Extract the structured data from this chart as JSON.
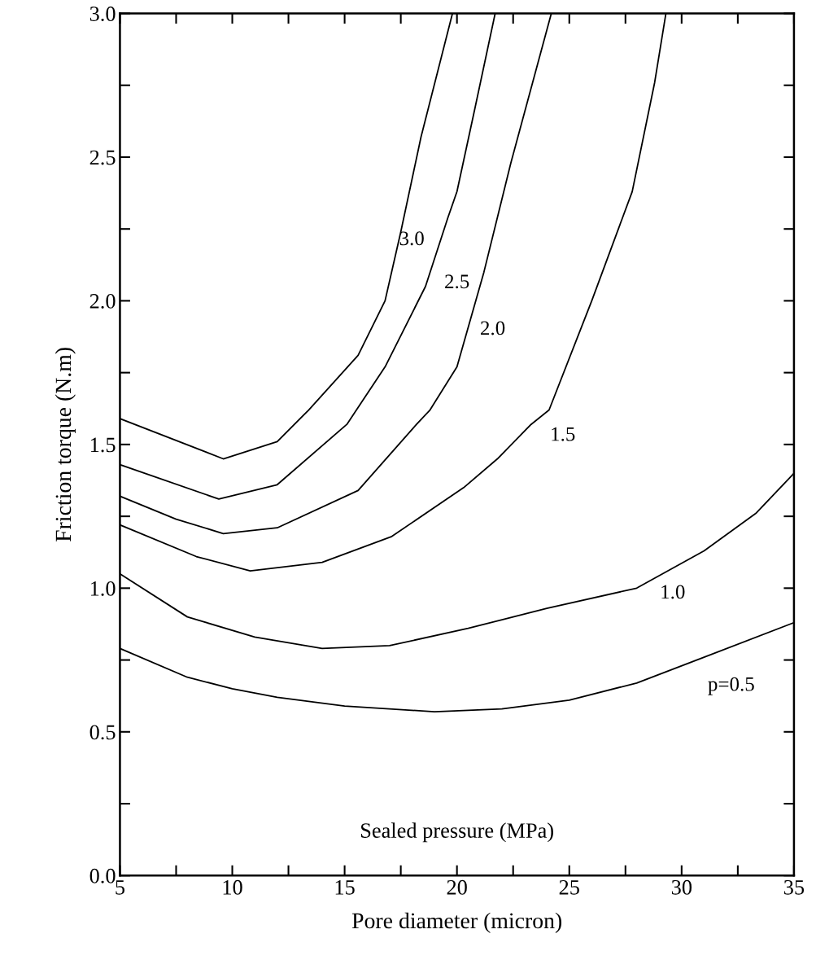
{
  "chart_data": {
    "type": "line",
    "xlabel": "Pore diameter (micron)",
    "ylabel": "Friction torque (N.m)",
    "xlim": [
      5,
      35
    ],
    "ylim": [
      0.0,
      3.0
    ],
    "xticks": [
      5,
      {
        "value": 7.5,
        "label": null
      },
      10,
      {
        "value": 12.5,
        "label": null
      },
      15,
      {
        "value": 17.5,
        "label": null
      },
      20,
      {
        "value": 22.5,
        "label": null
      },
      25,
      {
        "value": 27.5,
        "label": null
      },
      30,
      {
        "value": 32.5,
        "label": null
      },
      35
    ],
    "yticks": [
      {
        "value": 0.0,
        "label": "0.0"
      },
      {
        "value": 0.25,
        "label": null
      },
      0.5,
      {
        "value": 0.75,
        "label": null
      },
      {
        "value": 1.0,
        "label": "1.0"
      },
      {
        "value": 1.25,
        "label": null
      },
      1.5,
      {
        "value": 1.75,
        "label": null
      },
      {
        "value": 2.0,
        "label": "2.0"
      },
      {
        "value": 2.25,
        "label": null
      },
      2.5,
      {
        "value": 2.75,
        "label": null
      },
      {
        "value": 3.0,
        "label": "3.0"
      }
    ],
    "grid": false,
    "legend": false,
    "marker": "none",
    "line_style": "solid",
    "series": [
      {
        "name": "p=0.5",
        "color": "#000000",
        "x": [
          5,
          8,
          10,
          12,
          15,
          19,
          22,
          25,
          28,
          31,
          35
        ],
        "values": [
          0.79,
          0.69,
          0.65,
          0.62,
          0.59,
          0.57,
          0.58,
          0.61,
          0.67,
          0.76,
          0.88
        ]
      },
      {
        "name": "1.0",
        "color": "#000000",
        "x": [
          5,
          8,
          11,
          14,
          17,
          20.5,
          24,
          28,
          31,
          33.3,
          35
        ],
        "values": [
          1.05,
          0.9,
          0.83,
          0.79,
          0.8,
          0.86,
          0.93,
          1.0,
          1.13,
          1.26,
          1.4
        ]
      },
      {
        "name": "1.5",
        "color": "#000000",
        "x": [
          5,
          8.4,
          10.8,
          14,
          17.1,
          20.3,
          21.8,
          23.3,
          24.1,
          26,
          27.8,
          28.8,
          29.3
        ],
        "values": [
          1.22,
          1.11,
          1.06,
          1.09,
          1.18,
          1.35,
          1.45,
          1.57,
          1.62,
          2.0,
          2.38,
          2.76,
          3.0
        ]
      },
      {
        "name": "2.0",
        "color": "#000000",
        "x": [
          5,
          7.5,
          9.6,
          12,
          15.6,
          18.2,
          18.8,
          20,
          21.2,
          22.4,
          24.2
        ],
        "values": [
          1.32,
          1.24,
          1.19,
          1.21,
          1.34,
          1.57,
          1.62,
          1.77,
          2.1,
          2.48,
          3.0
        ]
      },
      {
        "name": "2.5",
        "color": "#000000",
        "x": [
          5,
          9.4,
          12,
          15.1,
          16.8,
          18.6,
          19.6,
          20,
          20.8,
          21.7
        ],
        "values": [
          1.43,
          1.31,
          1.36,
          1.57,
          1.77,
          2.05,
          2.29,
          2.38,
          2.67,
          3.0
        ]
      },
      {
        "name": "3.0",
        "color": "#000000",
        "x": [
          5,
          9.6,
          12,
          13.4,
          15.6,
          16.8,
          17.5,
          18.4,
          19.8
        ],
        "values": [
          1.59,
          1.45,
          1.51,
          1.62,
          1.81,
          2.0,
          2.24,
          2.57,
          3.0
        ]
      }
    ],
    "annotations": [
      "Sealed pressure (MPa)"
    ]
  }
}
